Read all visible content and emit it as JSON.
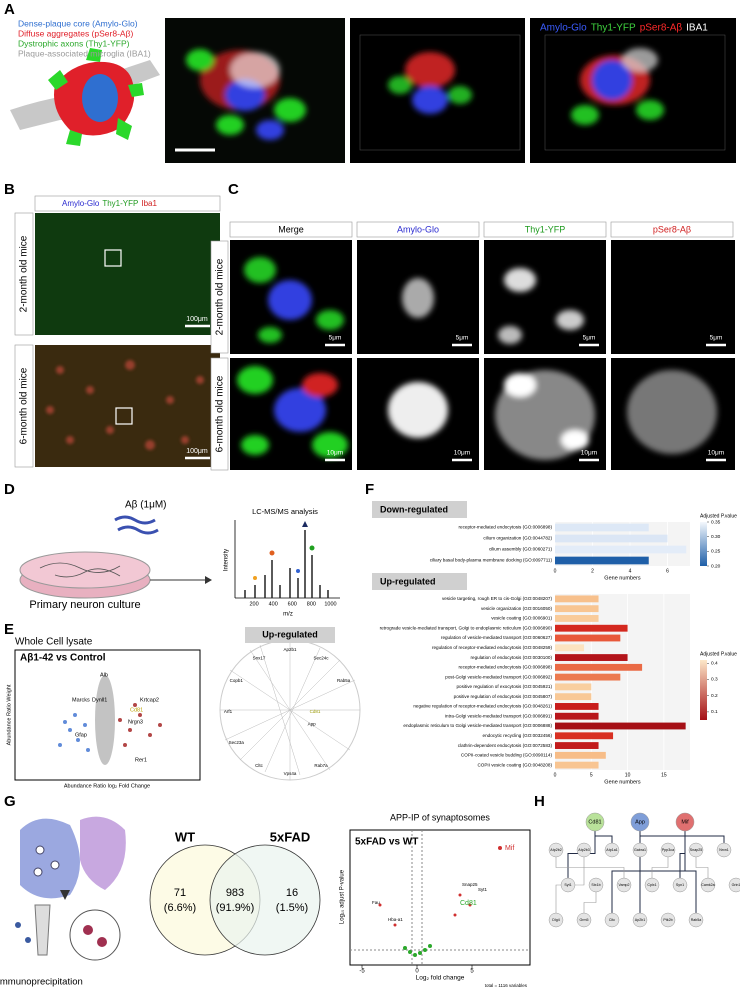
{
  "panels": {
    "a": {
      "label": "A",
      "legend": [
        {
          "text": "Dense-plaque core (Amylo-Glo)",
          "color": "#2f6fd0"
        },
        {
          "text": "Diffuse aggregates (pSer8-Aβ)",
          "color": "#e0202a"
        },
        {
          "text": "Dystrophic axons (Thy1-YFP)",
          "color": "#2aa82a"
        },
        {
          "text": "Plaque-associated microglia (IBA1)",
          "color": "#9a9a9a"
        }
      ],
      "overlay": [
        {
          "text": "Amylo-Glo",
          "color": "#3a5cff"
        },
        {
          "text": "Thy1-YFP",
          "color": "#3fd43f"
        },
        {
          "text": "pSer8-Aβ",
          "color": "#ff2a2a"
        },
        {
          "text": "IBA1",
          "color": "#ffffff"
        }
      ]
    },
    "b": {
      "label": "B",
      "channels": [
        {
          "text": "Amylo-Glo",
          "color": "#2a2ad0"
        },
        {
          "text": "Thy1-YFP",
          "color": "#1e9a1e"
        },
        {
          "text": "Iba1",
          "color": "#d02020"
        }
      ],
      "rows": [
        "2-month old mice",
        "6-month old mice"
      ],
      "scale": "100μm"
    },
    "c": {
      "label": "C",
      "columns": [
        {
          "text": "Merge",
          "color": "#000000"
        },
        {
          "text": "Amylo-Glo",
          "color": "#2a2ad0"
        },
        {
          "text": "Thy1-YFP",
          "color": "#1e9a1e"
        },
        {
          "text": "pSer8-Aβ",
          "color": "#d02020"
        }
      ],
      "rows": [
        "2-month old mice",
        "6-month old mice"
      ],
      "scales": [
        "5μm",
        "10μm"
      ]
    },
    "d": {
      "label": "D",
      "treatment": "Aβ (1μM)",
      "culture": "Primary neuron culture",
      "analysis": "LC-MS/MS analysis",
      "ylabel": "Intensity",
      "xlabel": "m/z",
      "xticks": [
        200,
        400,
        600,
        800,
        1000
      ]
    },
    "e": {
      "label": "E",
      "title": "Whole Cell lysate",
      "comparison": "Aβ1-42 vs Control",
      "xlabel": "Abundance Ratio log₂ Fold Change",
      "ylabel": "Abundance Ratio Weight",
      "volcano_genes": [
        "Alb",
        "Marcks",
        "Dynll1",
        "Cd81",
        "Krtcap2",
        "Nrgn3",
        "Gfap",
        "Rer1"
      ],
      "network_title": "Up-regulated",
      "network_genes": [
        "Cd81",
        "App",
        "Rab7a",
        "Vps4a",
        "Cltc",
        "Sec23a",
        "Arf1",
        "Copb1",
        "Snx17",
        "Ap2b1",
        "Sec24c",
        "Rab5a"
      ]
    },
    "f": {
      "label": "F"
    },
    "g": {
      "label": "G",
      "method": "Immunoprecipitation",
      "venn": {
        "sets": [
          "WT",
          "5xFAD"
        ],
        "regions": [
          {
            "count": 71,
            "percent": "(6.6%)"
          },
          {
            "count": 983,
            "percent": "(91.9%)"
          },
          {
            "count": 16,
            "percent": "(1.5%)"
          }
        ]
      },
      "volcano": {
        "title": "APP-IP of synaptosomes",
        "comparison": "5xFAD vs WT",
        "xlabel": "Log₂ fold change",
        "ylabel": "Log₁₀ adjust P-value",
        "xticks": [
          -5,
          0,
          5
        ],
        "total": "total = 1116 variables",
        "genes": [
          "Mif",
          "Cd81",
          "Fau",
          "Hba-a1",
          "Snap25",
          "Syt1"
        ]
      }
    },
    "h": {
      "label": "H",
      "nodes": [
        "Cd81",
        "App",
        "Mif",
        "Atp2b2",
        "Atp2b3",
        "Atp1a1",
        "Gabra1",
        "Ppp3ca",
        "Snap25",
        "Nrxn1",
        "Syt1",
        "Stx1b",
        "Vamp2",
        "Cplx1",
        "Syn1",
        "Camk2a",
        "Grin1",
        "Dlg4",
        "Grm5",
        "Cltc",
        "Ap2b1",
        "Ptk2b",
        "Rab5a"
      ]
    }
  },
  "chart_data": [
    {
      "type": "bar",
      "title": "Down-regulated",
      "categories": [
        "receptor-mediated endocytosis (GO:0006898)",
        "cilium organization (GO:0044782)",
        "cilium assembly (GO:0060271)",
        "ciliary basal body-plasma membrane docking (GO:0097711)"
      ],
      "values": [
        5,
        6,
        7,
        5
      ],
      "colors": [
        "#dde8f6",
        "#dbe6f5",
        "#e3ecf8",
        "#1f5fa8"
      ],
      "xlim": [
        0,
        7.2
      ],
      "xticks": [
        0,
        2,
        4,
        6
      ],
      "xlabel": "Gene numbers",
      "colorbar": {
        "title": "Adjusted P.value",
        "colors": [
          "#1f5fa8",
          "#f4f8fd"
        ],
        "lim": [
          0.2,
          0.35
        ],
        "ticks": [
          {
            "value": 0.2,
            "label": "0.20"
          },
          {
            "value": 0.25,
            "label": "0.25"
          },
          {
            "value": 0.3,
            "label": "0.30"
          },
          {
            "value": 0.35,
            "label": "0.35"
          }
        ]
      }
    },
    {
      "type": "bar",
      "title": "Up-regulated",
      "categories": [
        "vesicle targeting, rough ER to cis-Golgi (GO:0048207)",
        "vesicle organization (GO:0016050)",
        "vesicle coating (GO:0006901)",
        "retrograde vesicle-mediated transport, Golgi to endoplasmic reticulum (GO:0006890)",
        "regulation of vesicle-mediated transport (GO:0060627)",
        "regulation of receptor-mediated endocytosis (GO:0048259)",
        "regulation of endocytosis (GO:0030100)",
        "receptor-mediated endocytosis (GO:0006898)",
        "post-Golgi vesicle-mediated transport (GO:0006892)",
        "positive regulation of exocytosis (GO:0045921)",
        "positive regulation of endocytosis (GO:0045807)",
        "negative regulation of receptor-mediated endocytosis (GO:0048261)",
        "intra-Golgi vesicle-mediated transport (GO:0006891)",
        "endoplasmic reticulum to Golgi vesicle-mediated transport (GO:0006888)",
        "endocytic recycling (GO:0032456)",
        "clathrin-dependent endocytosis (GO:0072583)",
        "COPII-coated vesicle budding (GO:0090114)",
        "COPII vesicle coating (GO:0048208)"
      ],
      "values": [
        6,
        6,
        6,
        10,
        9,
        4,
        10,
        12,
        9,
        5,
        5,
        6,
        6,
        18,
        8,
        6,
        7,
        6
      ],
      "colors": [
        "#f7c08c",
        "#f8c592",
        "#f9cb9a",
        "#d4281e",
        "#e8583a",
        "#fce3c0",
        "#b3141a",
        "#ea6a45",
        "#ec7a4f",
        "#f9cfa0",
        "#f8c896",
        "#c81c1c",
        "#b8161b",
        "#a50f15",
        "#d83022",
        "#c21a1a",
        "#f7bd88",
        "#f8c592"
      ],
      "xlim": [
        0,
        18.6
      ],
      "xticks": [
        0,
        5,
        10,
        15
      ],
      "xlabel": "Gene numbers",
      "colorbar": {
        "title": "Adjusted P.value",
        "colors": [
          "#a50f15",
          "#fde8c8"
        ],
        "lim": [
          0.05,
          0.42
        ],
        "ticks": [
          0.1,
          0.2,
          0.3,
          0.4
        ]
      }
    }
  ]
}
